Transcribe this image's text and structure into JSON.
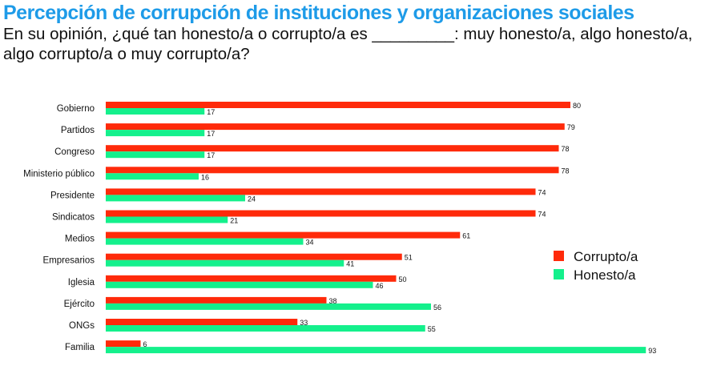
{
  "chart_data": {
    "type": "bar",
    "orientation": "horizontal",
    "title": "Percepción de corrupción de instituciones y organizaciones sociales",
    "subtitle": "En su opinión, ¿qué tan honesto/a o corrupto/a es _________: muy honesto/a, algo honesto/a, algo corrupto/a o muy corrupto/a?",
    "categories": [
      "Gobierno",
      "Partidos",
      "Congreso",
      "Ministerio público",
      "Presidente",
      "Sindicatos",
      "Medios",
      "Empresarios",
      "Iglesia",
      "Ejército",
      "ONGs",
      "Familia"
    ],
    "series": [
      {
        "name": "Corrupto/a",
        "color": "#ff2a0a",
        "values": [
          80,
          79,
          78,
          78,
          74,
          74,
          61,
          51,
          50,
          38,
          33,
          6
        ]
      },
      {
        "name": "Honesto/a",
        "color": "#14f08c",
        "values": [
          17,
          17,
          17,
          16,
          24,
          21,
          34,
          41,
          46,
          56,
          55,
          93
        ]
      }
    ],
    "xlim": [
      0,
      100
    ],
    "grid": false,
    "legend_position": "right"
  }
}
